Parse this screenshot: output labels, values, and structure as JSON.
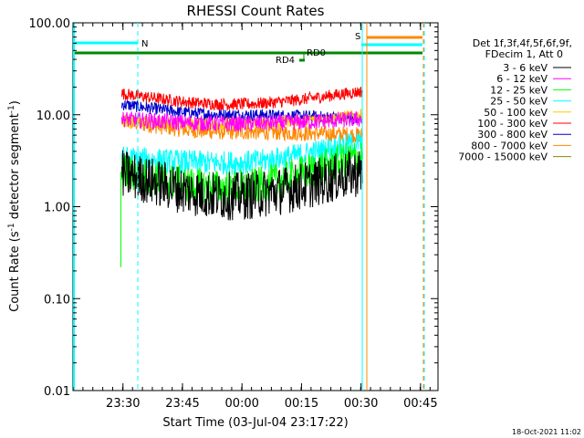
{
  "chart_data": {
    "type": "line",
    "title": "RHESSI Count Rates",
    "xlabel": "Start Time (03-Jul-04 23:17:22)",
    "ylabel_main": "Count Rate (s",
    "ylabel_sup": "-1",
    "ylabel_rest": " detector segment",
    "ylabel_sup2": "-1",
    "ylabel_close": ")",
    "y_scale": "log",
    "ylim": [
      0.01,
      100
    ],
    "xlim_minutes_after_23_17_22": [
      0,
      92
    ],
    "x_ticks": [
      {
        "label": "23:30",
        "minutes": 12.6
      },
      {
        "label": "23:45",
        "minutes": 27.6
      },
      {
        "label": "00:00",
        "minutes": 42.6
      },
      {
        "label": "00:15",
        "minutes": 57.6
      },
      {
        "label": "00:30",
        "minutes": 72.6
      },
      {
        "label": "00:45",
        "minutes": 87.6
      }
    ],
    "y_ticks": [
      {
        "label": "0.01",
        "value": 0.01
      },
      {
        "label": "0.10",
        "value": 0.1
      },
      {
        "label": "1.00",
        "value": 1
      },
      {
        "label": "10.00",
        "value": 10
      },
      {
        "label": "100.00",
        "value": 100
      }
    ],
    "legend_header": [
      "Det 1f,3f,4f,5f,6f,9f,",
      "FDecim 1, Att 0"
    ],
    "legend_position": "right",
    "series": [
      {
        "name": "3 - 6 keV",
        "color": "#000000",
        "start": 2.3,
        "mid": 1.3,
        "end": 2.4,
        "noise": 0.12
      },
      {
        "name": "6 - 12 keV",
        "color": "#ff00ff",
        "start": 9.0,
        "mid": 8.0,
        "end": 9.0,
        "noise": 0.04
      },
      {
        "name": "12 - 25 keV",
        "color": "#00ff00",
        "start": 2.4,
        "mid": 1.6,
        "end": 3.6,
        "noise": 0.09
      },
      {
        "name": "25 - 50 keV",
        "color": "#00ffff",
        "start": 3.4,
        "mid": 3.0,
        "end": 5.0,
        "noise": 0.06
      },
      {
        "name": "50 - 100 keV",
        "color": "#ffcc00",
        "start": 8.5,
        "mid": 8.0,
        "end": 10.0,
        "noise": 0.03
      },
      {
        "name": "100 - 300 keV",
        "color": "#ff0000",
        "start": 17.0,
        "mid": 13.0,
        "end": 18.0,
        "noise": 0.03
      },
      {
        "name": "300 - 800 keV",
        "color": "#0000cc",
        "start": 13.0,
        "mid": 10.0,
        "end": 9.0,
        "noise": 0.03
      },
      {
        "name": "800 - 7000 keV",
        "color": "#ff8800",
        "start": 8.5,
        "mid": 6.5,
        "end": 6.0,
        "noise": 0.04
      },
      {
        "name": "7000 - 15000 keV",
        "color": "#888800",
        "start": null,
        "mid": null,
        "end": null,
        "noise": 0
      }
    ],
    "data_window_minutes": [
      12.3,
      73.0
    ],
    "annotations": [
      {
        "label": "N",
        "color": "#00ffff"
      },
      {
        "label": "S",
        "color": "#ff8800"
      },
      {
        "label": "RD0",
        "color": "#008800"
      },
      {
        "label": "RD4",
        "color": "#008800"
      }
    ],
    "footer_timestamp": "18-Oct-2021 11:02"
  }
}
